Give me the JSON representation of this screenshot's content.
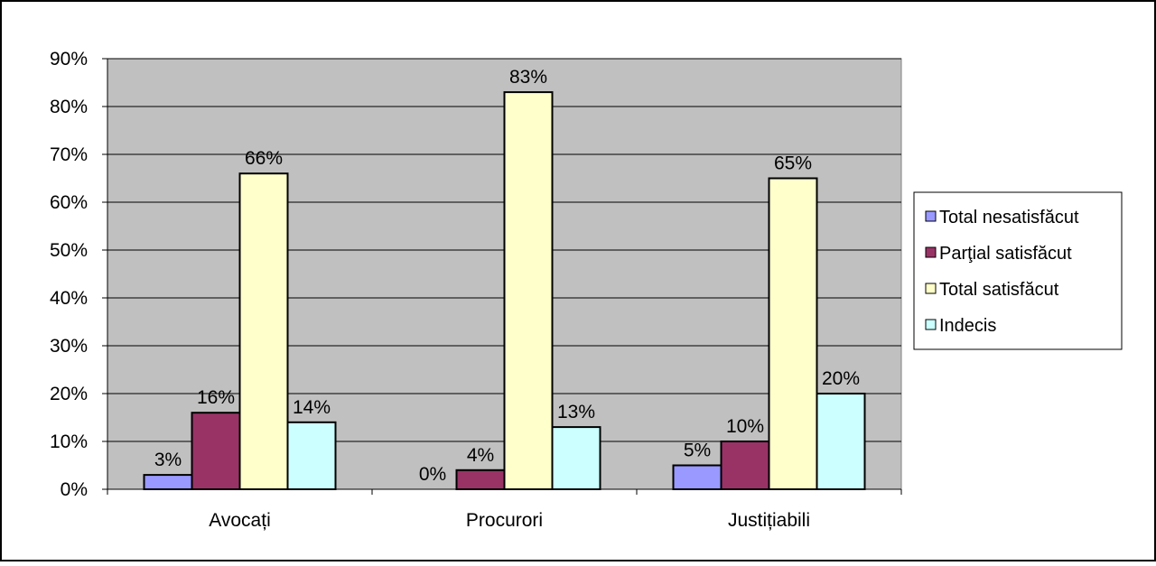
{
  "chart_data": {
    "type": "bar",
    "categories": [
      "Avocați",
      "Procurori",
      "Justițiabili"
    ],
    "series": [
      {
        "name": "Total nesatisfăcut",
        "values": [
          3,
          0,
          5
        ],
        "color": "#9999ff"
      },
      {
        "name": "Parţial satisfăcut",
        "values": [
          16,
          4,
          10
        ],
        "color": "#993366"
      },
      {
        "name": "Total satisfăcut",
        "values": [
          66,
          83,
          65
        ],
        "color": "#ffffcc"
      },
      {
        "name": "Indecis",
        "values": [
          14,
          13,
          20
        ],
        "color": "#ccffff"
      }
    ],
    "data_labels": [
      [
        "3%",
        "0%",
        "5%"
      ],
      [
        "16%",
        "4%",
        "10%"
      ],
      [
        "66%",
        "83%",
        "65%"
      ],
      [
        "14%",
        "13%",
        "20%"
      ]
    ],
    "yticks": [
      "0%",
      "10%",
      "20%",
      "30%",
      "40%",
      "50%",
      "60%",
      "70%",
      "80%",
      "90%"
    ],
    "ylim": [
      0,
      90
    ],
    "grid": true,
    "plot_background": "#c0c0c0",
    "legend_position": "right",
    "title": "",
    "xlabel": "",
    "ylabel": ""
  }
}
